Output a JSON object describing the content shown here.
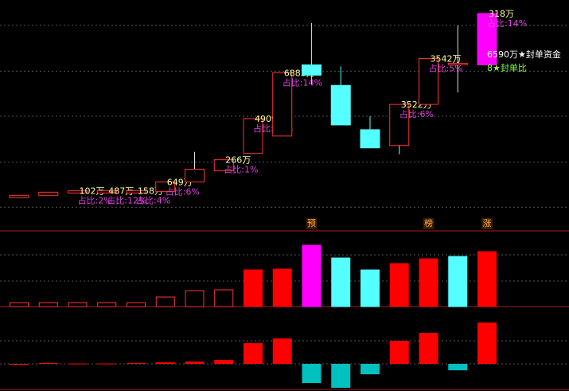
{
  "chart_data": [
    {
      "type": "candlestick",
      "open": [
        42,
        45,
        48,
        48,
        48,
        50,
        62,
        76,
        98,
        120,
        210,
        184,
        128,
        108,
        160,
        210,
        210
      ],
      "high": [
        45,
        49,
        51,
        51,
        51,
        62,
        100,
        90,
        142,
        200,
        263,
        208,
        145,
        160,
        218,
        260,
        275
      ],
      "low": [
        42,
        45,
        48,
        48,
        48,
        50,
        62,
        76,
        98,
        120,
        185,
        134,
        105,
        97,
        160,
        175,
        210
      ],
      "close": [
        45,
        49,
        51,
        51,
        51,
        62,
        78,
        90,
        142,
        200,
        197,
        134,
        105,
        160,
        218,
        212,
        275
      ],
      "colors": [
        "#ff3232",
        "#ff3232",
        "#ff3232",
        "#ff3232",
        "#ff3232",
        "#ff3232",
        "#ff3232",
        "#ff3232",
        "#ff3232",
        "#ff3232",
        "#54ffff",
        "#54ffff",
        "#54ffff",
        "#ff3232",
        "#ff3232",
        "#ff3232",
        "#ff00ff"
      ],
      "filled": [
        false,
        false,
        false,
        false,
        false,
        false,
        false,
        false,
        false,
        false,
        true,
        true,
        true,
        false,
        false,
        false,
        true
      ],
      "amount_labels": [
        null,
        null,
        "102万",
        "487万",
        "158万",
        "649万",
        null,
        "266万",
        "4909万",
        "6883万",
        null,
        null,
        null,
        "3522万",
        "3542万",
        null,
        "318万"
      ],
      "ratio_labels": [
        null,
        null,
        "占比:2%",
        "占比:12%",
        "占比:4%",
        "占比:6%",
        null,
        "占比:1%",
        "占比:11%",
        "占比:14%",
        null,
        null,
        null,
        "占比:6%",
        "占比:5%",
        null,
        "占比:14%"
      ],
      "seal_amount": "6590万★封单资金",
      "seal_ratio": "8★封单比",
      "ylim": [
        0,
        290
      ],
      "grid": [
        30,
        87,
        145,
        202,
        260
      ]
    },
    {
      "type": "bar",
      "values": [
        5,
        5,
        5,
        5,
        5,
        12,
        20,
        21,
        46,
        47,
        77,
        61,
        46,
        54,
        60,
        63,
        69
      ],
      "colors": [
        "#ff3232",
        "#ff3232",
        "#ff3232",
        "#ff3232",
        "#ff3232",
        "#ff3232",
        "#ff3232",
        "#ff3232",
        "#ff0000",
        "#ff0000",
        "#ff00ff",
        "#54ffff",
        "#54ffff",
        "#ff0000",
        "#ff0000",
        "#54ffff",
        "#ff0000"
      ],
      "filled": [
        false,
        false,
        false,
        false,
        false,
        false,
        false,
        false,
        true,
        true,
        true,
        true,
        true,
        true,
        true,
        true,
        true
      ],
      "markers": [
        null,
        null,
        null,
        null,
        null,
        null,
        null,
        null,
        null,
        null,
        "预",
        null,
        null,
        null,
        "榜",
        null,
        "涨"
      ],
      "ylim": [
        0,
        95
      ],
      "grid": [
        32,
        65
      ]
    },
    {
      "type": "macd",
      "values": [
        0,
        1,
        0.5,
        0.5,
        1,
        2,
        3,
        5,
        26,
        32,
        -24,
        -30,
        -13,
        29,
        39,
        -8,
        52
      ],
      "up_color": "#ff0000",
      "down_color": "#00c0c0",
      "ylim": [
        -32,
        72
      ],
      "grid": [
        0,
        29
      ]
    }
  ]
}
